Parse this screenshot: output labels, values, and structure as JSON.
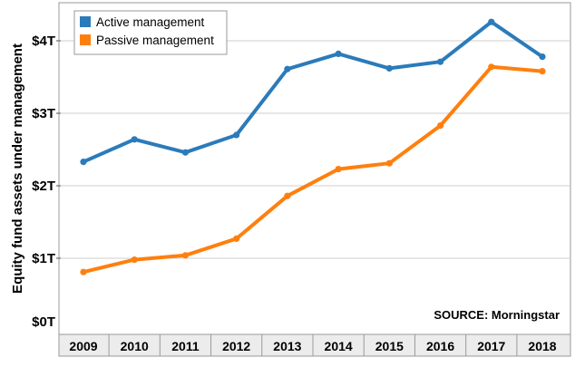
{
  "chart_data": {
    "type": "line",
    "ylabel": "Equity fund assets under management",
    "x": [
      "2009",
      "2010",
      "2011",
      "2012",
      "2013",
      "2014",
      "2015",
      "2016",
      "2017",
      "2018"
    ],
    "y_ticks": [
      "$0T",
      "$1T",
      "$2T",
      "$3T",
      "$4T"
    ],
    "ylim": [
      0,
      4.4
    ],
    "grid": "horizontal",
    "legend": "top-left",
    "series": [
      {
        "name": "Active management",
        "color": "#2b7bba",
        "values": [
          2.33,
          2.64,
          2.46,
          2.7,
          3.61,
          3.82,
          3.62,
          3.71,
          4.26,
          3.78
        ]
      },
      {
        "name": "Passive management",
        "color": "#ff7f0e",
        "values": [
          0.81,
          0.98,
          1.04,
          1.27,
          1.86,
          2.23,
          2.31,
          2.83,
          3.64,
          3.58
        ]
      }
    ],
    "annotation": "SOURCE: Morningstar"
  }
}
